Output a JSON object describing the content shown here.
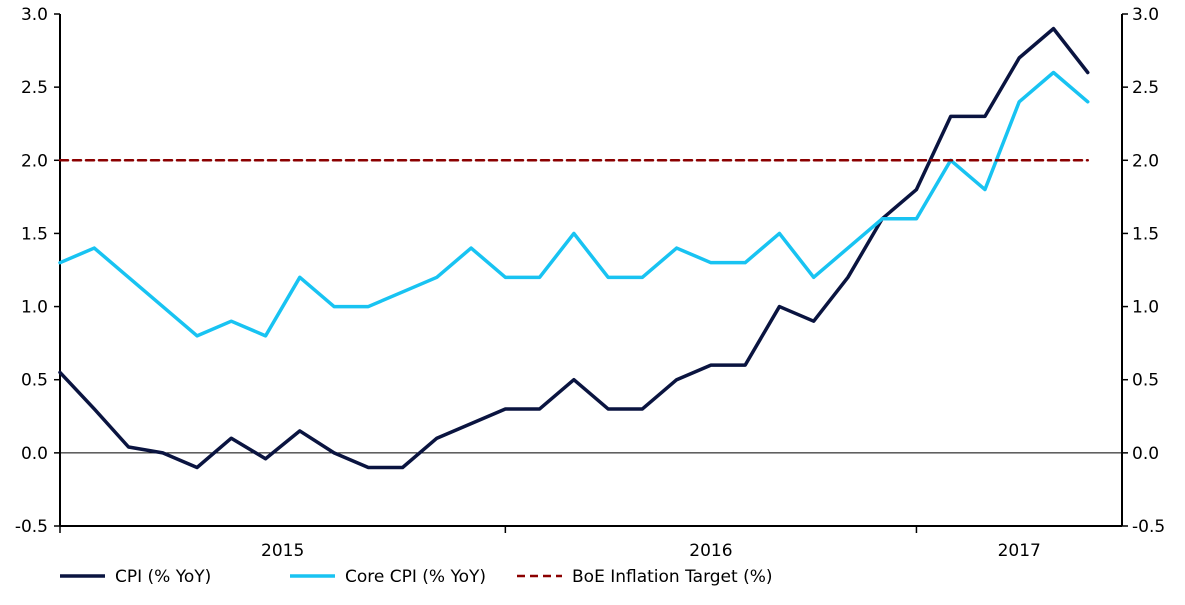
{
  "chart_data": {
    "type": "line",
    "x_unit": "month",
    "x": [
      "2014-12",
      "2015-01",
      "2015-02",
      "2015-03",
      "2015-04",
      "2015-05",
      "2015-06",
      "2015-07",
      "2015-08",
      "2015-09",
      "2015-10",
      "2015-11",
      "2015-12",
      "2016-01",
      "2016-02",
      "2016-03",
      "2016-04",
      "2016-05",
      "2016-06",
      "2016-07",
      "2016-08",
      "2016-09",
      "2016-10",
      "2016-11",
      "2016-12",
      "2017-01",
      "2017-02",
      "2017-03",
      "2017-04",
      "2017-05",
      "2017-06",
      "2017-07"
    ],
    "x_axis_labels": [
      "2015",
      "2016",
      "2017"
    ],
    "y_ticks": [
      "-0.5",
      "0.0",
      "0.5",
      "1.0",
      "1.5",
      "2.0",
      "2.5",
      "3.0"
    ],
    "ylim": [
      -0.5,
      3.0
    ],
    "series": [
      {
        "name": "CPI (% YoY)",
        "color": "#0a1440",
        "style": "solid",
        "values": [
          0.55,
          0.3,
          0.04,
          0.0,
          -0.1,
          0.1,
          -0.04,
          0.15,
          0.0,
          -0.1,
          -0.1,
          0.1,
          0.2,
          0.3,
          0.3,
          0.5,
          0.3,
          0.3,
          0.5,
          0.6,
          0.6,
          1.0,
          0.9,
          1.2,
          1.6,
          1.8,
          2.3,
          2.3,
          2.7,
          2.9,
          2.6,
          null
        ]
      },
      {
        "name": "Core CPI (% YoY)",
        "color": "#18c3f2",
        "style": "solid",
        "values": [
          1.3,
          1.4,
          1.2,
          1.0,
          0.8,
          0.9,
          0.8,
          1.2,
          1.0,
          1.0,
          1.1,
          1.2,
          1.4,
          1.2,
          1.2,
          1.5,
          1.2,
          1.2,
          1.4,
          1.3,
          1.3,
          1.5,
          1.2,
          1.4,
          1.6,
          1.6,
          2.0,
          1.8,
          2.4,
          2.6,
          2.4,
          null
        ]
      },
      {
        "name": "BoE Inflation Target (%)",
        "color": "#8b0000",
        "style": "dashed",
        "values": [
          2,
          2,
          2,
          2,
          2,
          2,
          2,
          2,
          2,
          2,
          2,
          2,
          2,
          2,
          2,
          2,
          2,
          2,
          2,
          2,
          2,
          2,
          2,
          2,
          2,
          2,
          2,
          2,
          2,
          2,
          2,
          null
        ]
      }
    ],
    "grid": false,
    "dual_y_axis": true,
    "legend_position": "bottom-left"
  }
}
